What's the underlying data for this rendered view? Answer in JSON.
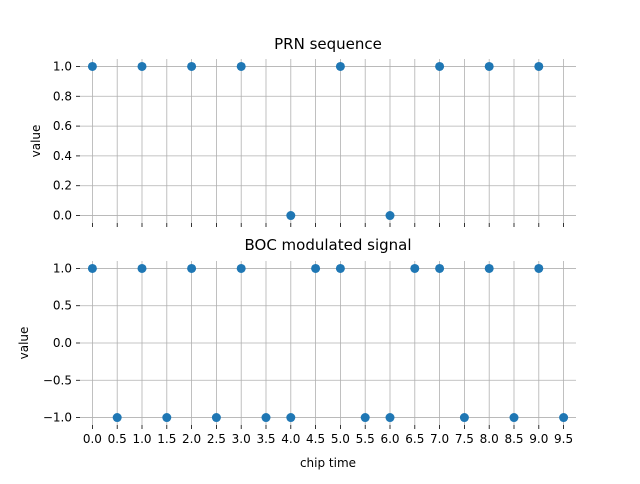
{
  "chart_data": [
    {
      "type": "scatter",
      "title": "PRN sequence",
      "xlabel": "",
      "ylabel": "value",
      "xlim": [
        -0.25,
        9.75
      ],
      "ylim": [
        -0.05,
        1.05
      ],
      "xticks": [
        0.0,
        0.5,
        1.0,
        1.5,
        2.0,
        2.5,
        3.0,
        3.5,
        4.0,
        4.5,
        5.0,
        5.5,
        6.0,
        6.5,
        7.0,
        7.5,
        8.0,
        8.5,
        9.0,
        9.5
      ],
      "xtick_labels_visible": false,
      "yticks": [
        0.0,
        0.2,
        0.4,
        0.6,
        0.8,
        1.0
      ],
      "ytick_labels": [
        "0.0",
        "0.2",
        "0.4",
        "0.6",
        "0.8",
        "1.0"
      ],
      "grid": true,
      "color": "#1f77b4",
      "x": [
        0,
        1,
        2,
        3,
        4,
        5,
        6,
        7,
        8,
        9
      ],
      "y": [
        1,
        1,
        1,
        1,
        0,
        1,
        0,
        1,
        1,
        1
      ]
    },
    {
      "type": "scatter",
      "title": "BOC modulated signal",
      "xlabel": "chip time",
      "ylabel": "value",
      "xlim": [
        -0.25,
        9.75
      ],
      "ylim": [
        -1.1,
        1.1
      ],
      "xticks": [
        0.0,
        0.5,
        1.0,
        1.5,
        2.0,
        2.5,
        3.0,
        3.5,
        4.0,
        4.5,
        5.0,
        5.5,
        6.0,
        6.5,
        7.0,
        7.5,
        8.0,
        8.5,
        9.0,
        9.5
      ],
      "xtick_labels": [
        "0.0",
        "0.5",
        "1.0",
        "1.5",
        "2.0",
        "2.5",
        "3.0",
        "3.5",
        "4.0",
        "4.5",
        "5.0",
        "5.5",
        "6.0",
        "6.5",
        "7.0",
        "7.5",
        "8.0",
        "8.5",
        "9.0",
        "9.5"
      ],
      "xtick_labels_visible": true,
      "yticks": [
        -1.0,
        -0.5,
        0.0,
        0.5,
        1.0
      ],
      "ytick_labels": [
        "−1.0",
        "−0.5",
        "0.0",
        "0.5",
        "1.0"
      ],
      "grid": true,
      "color": "#1f77b4",
      "x": [
        0.0,
        0.5,
        1.0,
        1.5,
        2.0,
        2.5,
        3.0,
        3.5,
        4.0,
        4.5,
        5.0,
        5.5,
        6.0,
        6.5,
        7.0,
        7.5,
        8.0,
        8.5,
        9.0,
        9.5
      ],
      "y": [
        1,
        -1,
        1,
        -1,
        1,
        -1,
        1,
        -1,
        -1,
        1,
        1,
        -1,
        -1,
        1,
        1,
        -1,
        1,
        -1,
        1,
        -1
      ]
    }
  ]
}
